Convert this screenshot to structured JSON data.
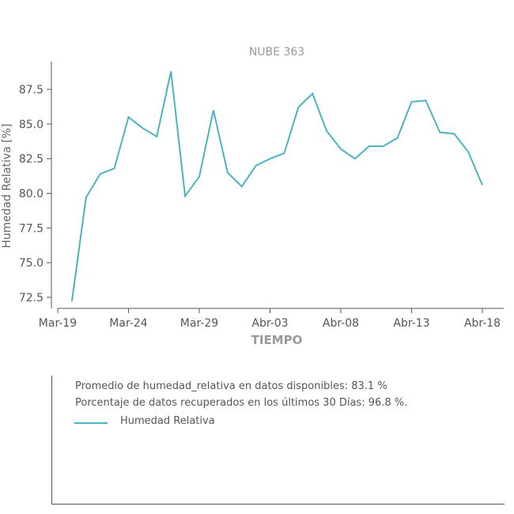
{
  "chart_data": {
    "type": "line",
    "title": "NUBE 363",
    "xlabel": "TIEMPO",
    "ylabel": "Humedad Relativa [%]",
    "x_tick_labels": [
      "Mar-19",
      "Mar-24",
      "Mar-29",
      "Abr-03",
      "Abr-08",
      "Abr-13",
      "Abr-18"
    ],
    "y_tick_labels": [
      "72.5",
      "75.0",
      "77.5",
      "80.0",
      "82.5",
      "85.0",
      "87.5"
    ],
    "y_ticks": [
      72.5,
      75.0,
      77.5,
      80.0,
      82.5,
      85.0,
      87.5
    ],
    "ylim": [
      71.7,
      89.5
    ],
    "series": [
      {
        "name": "Humedad Relativa",
        "color": "#4cb3c0",
        "x": [
          "2019-03-20",
          "2019-03-21",
          "2019-03-22",
          "2019-03-23",
          "2019-03-24",
          "2019-03-25",
          "2019-03-26",
          "2019-03-27",
          "2019-03-28",
          "2019-03-29",
          "2019-03-30",
          "2019-03-31",
          "2019-04-01",
          "2019-04-02",
          "2019-04-03",
          "2019-04-04",
          "2019-04-05",
          "2019-04-06",
          "2019-04-07",
          "2019-04-08",
          "2019-04-09",
          "2019-04-10",
          "2019-04-11",
          "2019-04-12",
          "2019-04-13",
          "2019-04-14",
          "2019-04-15",
          "2019-04-16",
          "2019-04-17",
          "2019-04-18"
        ],
        "values": [
          72.2,
          79.7,
          81.4,
          81.8,
          85.5,
          84.7,
          84.1,
          88.8,
          79.8,
          81.2,
          86.0,
          81.5,
          80.5,
          82.0,
          82.5,
          82.9,
          86.2,
          87.2,
          84.5,
          83.2,
          82.5,
          83.4,
          83.4,
          84.0,
          86.6,
          86.7,
          84.4,
          84.3,
          83.0,
          80.6
        ]
      }
    ]
  },
  "info": {
    "line1": "Promedio de humedad_relativa en datos disponibles: 83.1 %",
    "line2": "Porcentaje de datos recuperados en los últimos 30 Días: 96.8 %."
  },
  "legend": {
    "label": "Humedad Relativa",
    "color": "#4cb3c0"
  }
}
